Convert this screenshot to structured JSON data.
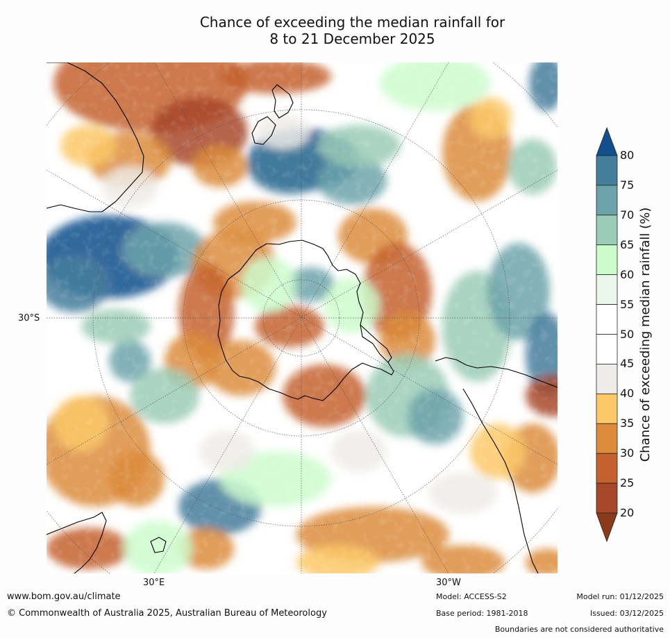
{
  "title": {
    "line1": "Chance of exceeding the median rainfall for",
    "line2": "8 to 21 December 2025"
  },
  "map": {
    "lat_label": "30°S",
    "lon_label_left": "30°E",
    "lon_label_right": "30°W",
    "land_regions_visible": [
      "Antarctica",
      "Australia",
      "New Zealand",
      "South America",
      "Africa"
    ]
  },
  "colorbar": {
    "title": "Chance of exceeding median rainfall (%)",
    "ticks": [
      "20",
      "25",
      "30",
      "35",
      "40",
      "45",
      "50",
      "55",
      "60",
      "65",
      "70",
      "75",
      "80"
    ],
    "colors": [
      "#8b3a1a",
      "#a8482a",
      "#c4622e",
      "#dc8c3c",
      "#fcc868",
      "#eeece8",
      "#ffffff",
      "#ffffff",
      "#ecf7ec",
      "#ccfbcc",
      "#9bcbb6",
      "#6ca3aa",
      "#457d9c",
      "#134f8c"
    ]
  },
  "footer": {
    "url": "www.bom.gov.au/climate",
    "copyright": "© Commonwealth of Australia 2025, Australian Bureau of Meteorology",
    "model": "Model: ACCESS-S2",
    "base_period": "Base period: 1981-2018",
    "model_run": "Model run: 01/12/2025",
    "issued": "Issued: 03/12/2025",
    "disclaimer": "Boundaries are not considered authoritative"
  }
}
